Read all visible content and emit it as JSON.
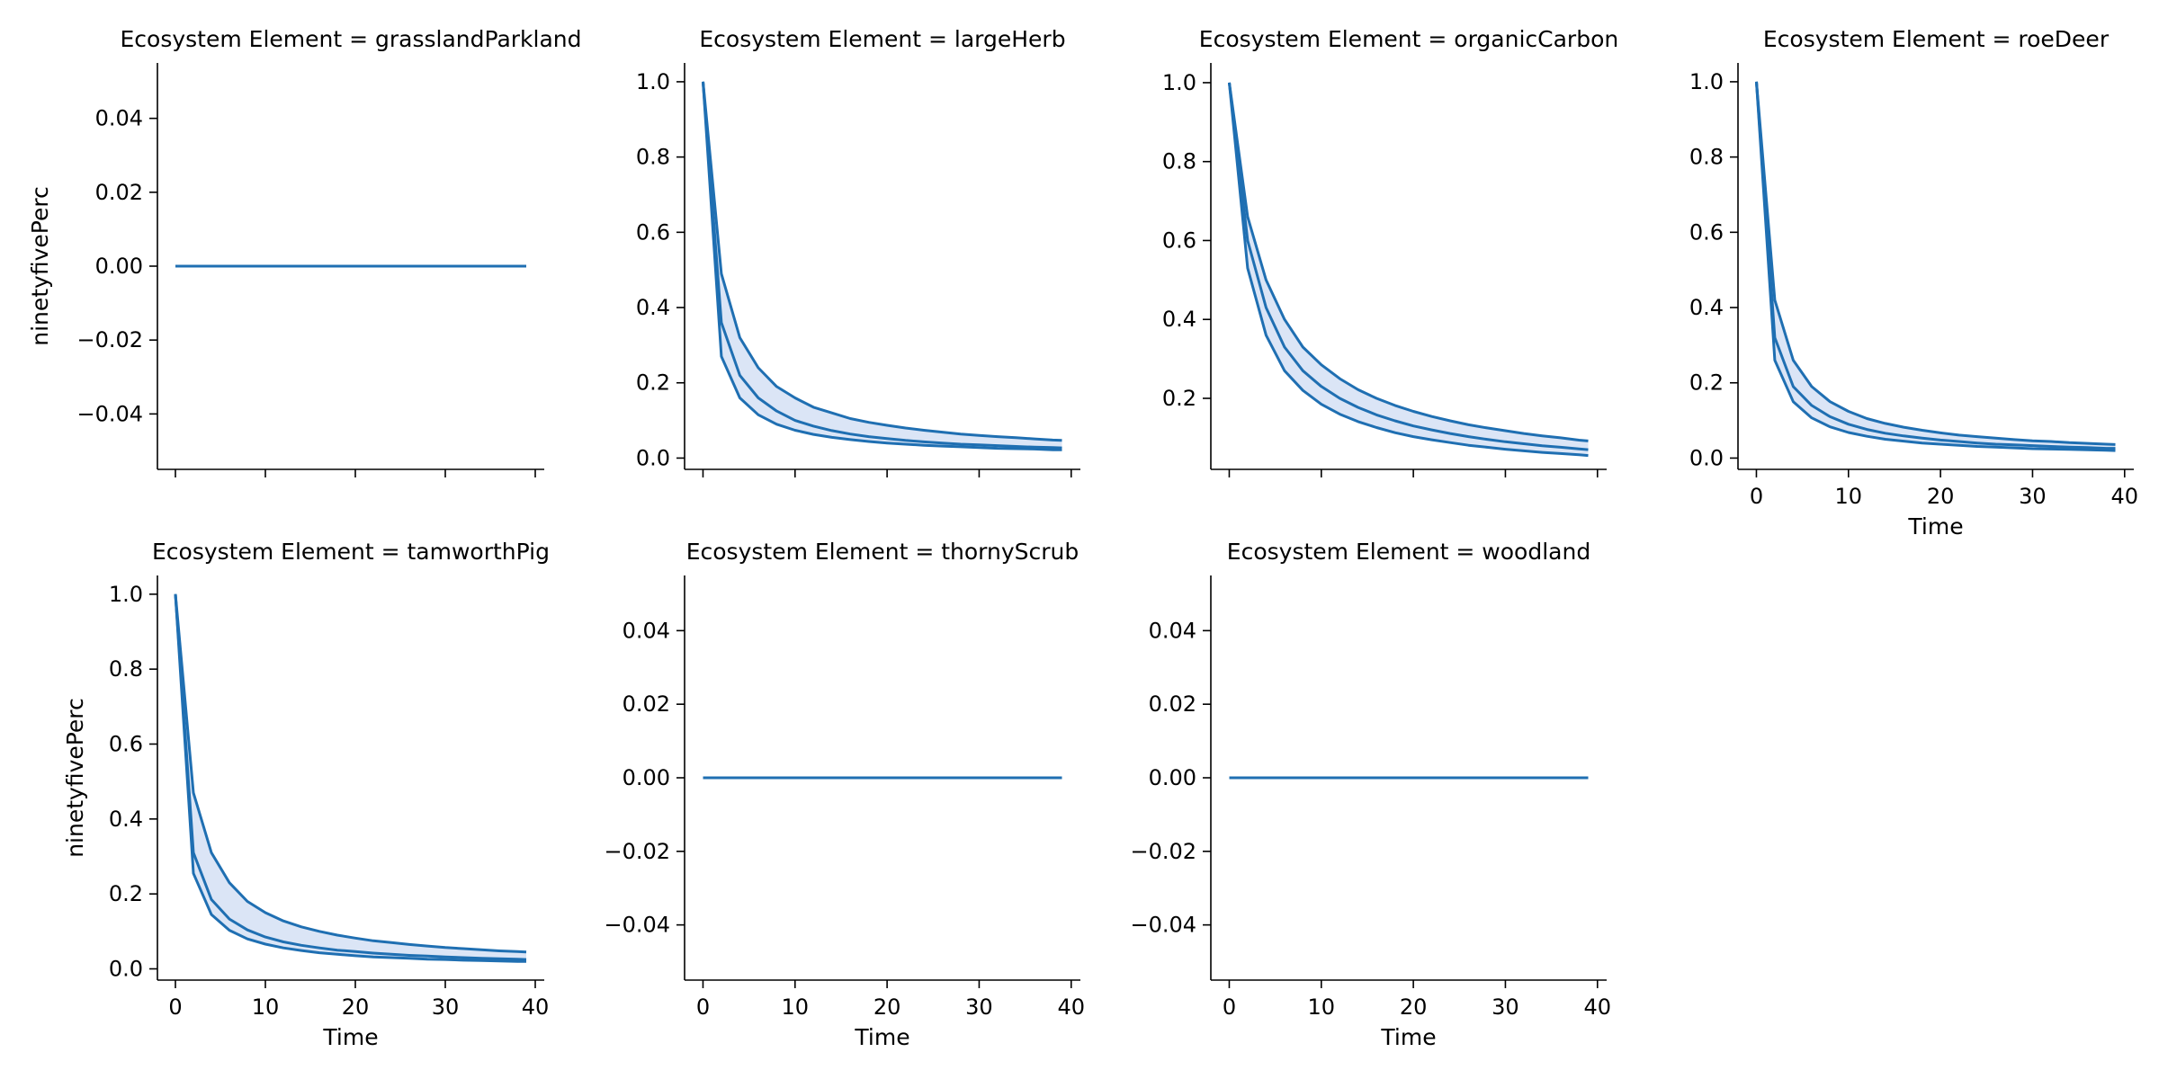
{
  "chart_data": {
    "type": "line",
    "facet_label": "Ecosystem Element",
    "xlabel": "Time",
    "ylabel": "ninetyfivePerc",
    "x_ticks": [
      0,
      10,
      20,
      30,
      40
    ],
    "xlim": [
      -2,
      41
    ],
    "x": [
      0,
      2,
      4,
      6,
      8,
      10,
      12,
      14,
      16,
      18,
      20,
      22,
      24,
      26,
      28,
      30,
      32,
      34,
      36,
      38,
      39
    ],
    "line_color": "#1f6fb2",
    "band_color": "#dbe5f6",
    "facets": [
      {
        "name": "grasslandParkland",
        "title": "Ecosystem Element = grasslandParkland",
        "ylim": [
          -0.055,
          0.055
        ],
        "yticks": [
          -0.04,
          -0.02,
          0.0,
          0.02,
          0.04
        ],
        "series": [
          {
            "values": [
              0,
              0,
              0,
              0,
              0,
              0,
              0,
              0,
              0,
              0,
              0,
              0,
              0,
              0,
              0,
              0,
              0,
              0,
              0,
              0,
              0
            ]
          }
        ]
      },
      {
        "name": "largeHerb",
        "title": "Ecosystem Element = largeHerb",
        "ylim": [
          -0.03,
          1.05
        ],
        "yticks": [
          0.0,
          0.2,
          0.4,
          0.6,
          0.8,
          1.0
        ],
        "series": [
          {
            "values": [
              1.0,
              0.49,
              0.32,
              0.24,
              0.19,
              0.16,
              0.135,
              0.12,
              0.105,
              0.095,
              0.087,
              0.08,
              0.074,
              0.069,
              0.064,
              0.06,
              0.057,
              0.054,
              0.051,
              0.048,
              0.047
            ]
          },
          {
            "values": [
              1.0,
              0.36,
              0.22,
              0.16,
              0.125,
              0.1,
              0.085,
              0.073,
              0.064,
              0.057,
              0.052,
              0.047,
              0.043,
              0.04,
              0.037,
              0.035,
              0.033,
              0.031,
              0.029,
              0.028,
              0.027
            ]
          },
          {
            "values": [
              1.0,
              0.27,
              0.16,
              0.115,
              0.09,
              0.074,
              0.063,
              0.055,
              0.049,
              0.044,
              0.04,
              0.037,
              0.034,
              0.032,
              0.03,
              0.028,
              0.026,
              0.025,
              0.024,
              0.022,
              0.022
            ]
          }
        ]
      },
      {
        "name": "organicCarbon",
        "title": "Ecosystem Element = organicCarbon",
        "ylim": [
          0.02,
          1.05
        ],
        "yticks": [
          0.2,
          0.4,
          0.6,
          0.8,
          1.0
        ],
        "series": [
          {
            "values": [
              1.0,
              0.66,
              0.5,
              0.4,
              0.33,
              0.285,
              0.25,
              0.222,
              0.2,
              0.182,
              0.167,
              0.154,
              0.143,
              0.133,
              0.125,
              0.118,
              0.111,
              0.105,
              0.1,
              0.094,
              0.092
            ]
          },
          {
            "values": [
              1.0,
              0.6,
              0.43,
              0.33,
              0.27,
              0.23,
              0.2,
              0.177,
              0.158,
              0.143,
              0.13,
              0.12,
              0.111,
              0.103,
              0.096,
              0.09,
              0.085,
              0.08,
              0.076,
              0.072,
              0.07
            ]
          },
          {
            "values": [
              1.0,
              0.53,
              0.36,
              0.27,
              0.22,
              0.185,
              0.16,
              0.141,
              0.126,
              0.113,
              0.103,
              0.095,
              0.088,
              0.081,
              0.076,
              0.071,
              0.067,
              0.063,
              0.06,
              0.057,
              0.055
            ]
          }
        ]
      },
      {
        "name": "roeDeer",
        "title": "Ecosystem Element = roeDeer",
        "ylim": [
          -0.03,
          1.05
        ],
        "yticks": [
          0.0,
          0.2,
          0.4,
          0.6,
          0.8,
          1.0
        ],
        "series": [
          {
            "values": [
              1.0,
              0.42,
              0.26,
              0.19,
              0.15,
              0.124,
              0.105,
              0.092,
              0.082,
              0.074,
              0.067,
              0.061,
              0.057,
              0.053,
              0.049,
              0.046,
              0.044,
              0.041,
              0.039,
              0.037,
              0.036
            ]
          },
          {
            "values": [
              1.0,
              0.32,
              0.19,
              0.14,
              0.11,
              0.09,
              0.076,
              0.066,
              0.059,
              0.053,
              0.048,
              0.044,
              0.04,
              0.037,
              0.035,
              0.033,
              0.031,
              0.029,
              0.028,
              0.026,
              0.026
            ]
          },
          {
            "values": [
              1.0,
              0.26,
              0.15,
              0.107,
              0.083,
              0.068,
              0.058,
              0.05,
              0.045,
              0.04,
              0.037,
              0.034,
              0.031,
              0.029,
              0.027,
              0.025,
              0.024,
              0.023,
              0.022,
              0.021,
              0.02
            ]
          }
        ]
      },
      {
        "name": "tamworthPig",
        "title": "Ecosystem Element = tamworthPig",
        "ylim": [
          -0.03,
          1.05
        ],
        "yticks": [
          0.0,
          0.2,
          0.4,
          0.6,
          0.8,
          1.0
        ],
        "series": [
          {
            "values": [
              1.0,
              0.47,
              0.31,
              0.23,
              0.18,
              0.15,
              0.128,
              0.112,
              0.1,
              0.09,
              0.082,
              0.075,
              0.07,
              0.065,
              0.061,
              0.057,
              0.054,
              0.051,
              0.048,
              0.046,
              0.045
            ]
          },
          {
            "values": [
              1.0,
              0.31,
              0.185,
              0.133,
              0.104,
              0.085,
              0.072,
              0.063,
              0.056,
              0.05,
              0.046,
              0.042,
              0.039,
              0.036,
              0.034,
              0.032,
              0.03,
              0.028,
              0.027,
              0.026,
              0.025
            ]
          },
          {
            "values": [
              1.0,
              0.255,
              0.145,
              0.103,
              0.08,
              0.066,
              0.056,
              0.049,
              0.043,
              0.039,
              0.035,
              0.032,
              0.03,
              0.028,
              0.026,
              0.025,
              0.023,
              0.022,
              0.021,
              0.02,
              0.02
            ]
          }
        ]
      },
      {
        "name": "thornyScrub",
        "title": "Ecosystem Element = thornyScrub",
        "ylim": [
          -0.055,
          0.055
        ],
        "yticks": [
          -0.04,
          -0.02,
          0.0,
          0.02,
          0.04
        ],
        "series": [
          {
            "values": [
              0,
              0,
              0,
              0,
              0,
              0,
              0,
              0,
              0,
              0,
              0,
              0,
              0,
              0,
              0,
              0,
              0,
              0,
              0,
              0,
              0
            ]
          }
        ]
      },
      {
        "name": "woodland",
        "title": "Ecosystem Element = woodland",
        "ylim": [
          -0.055,
          0.055
        ],
        "yticks": [
          -0.04,
          -0.02,
          0.0,
          0.02,
          0.04
        ],
        "series": [
          {
            "values": [
              0,
              0,
              0,
              0,
              0,
              0,
              0,
              0,
              0,
              0,
              0,
              0,
              0,
              0,
              0,
              0,
              0,
              0,
              0,
              0,
              0
            ]
          }
        ]
      }
    ]
  }
}
